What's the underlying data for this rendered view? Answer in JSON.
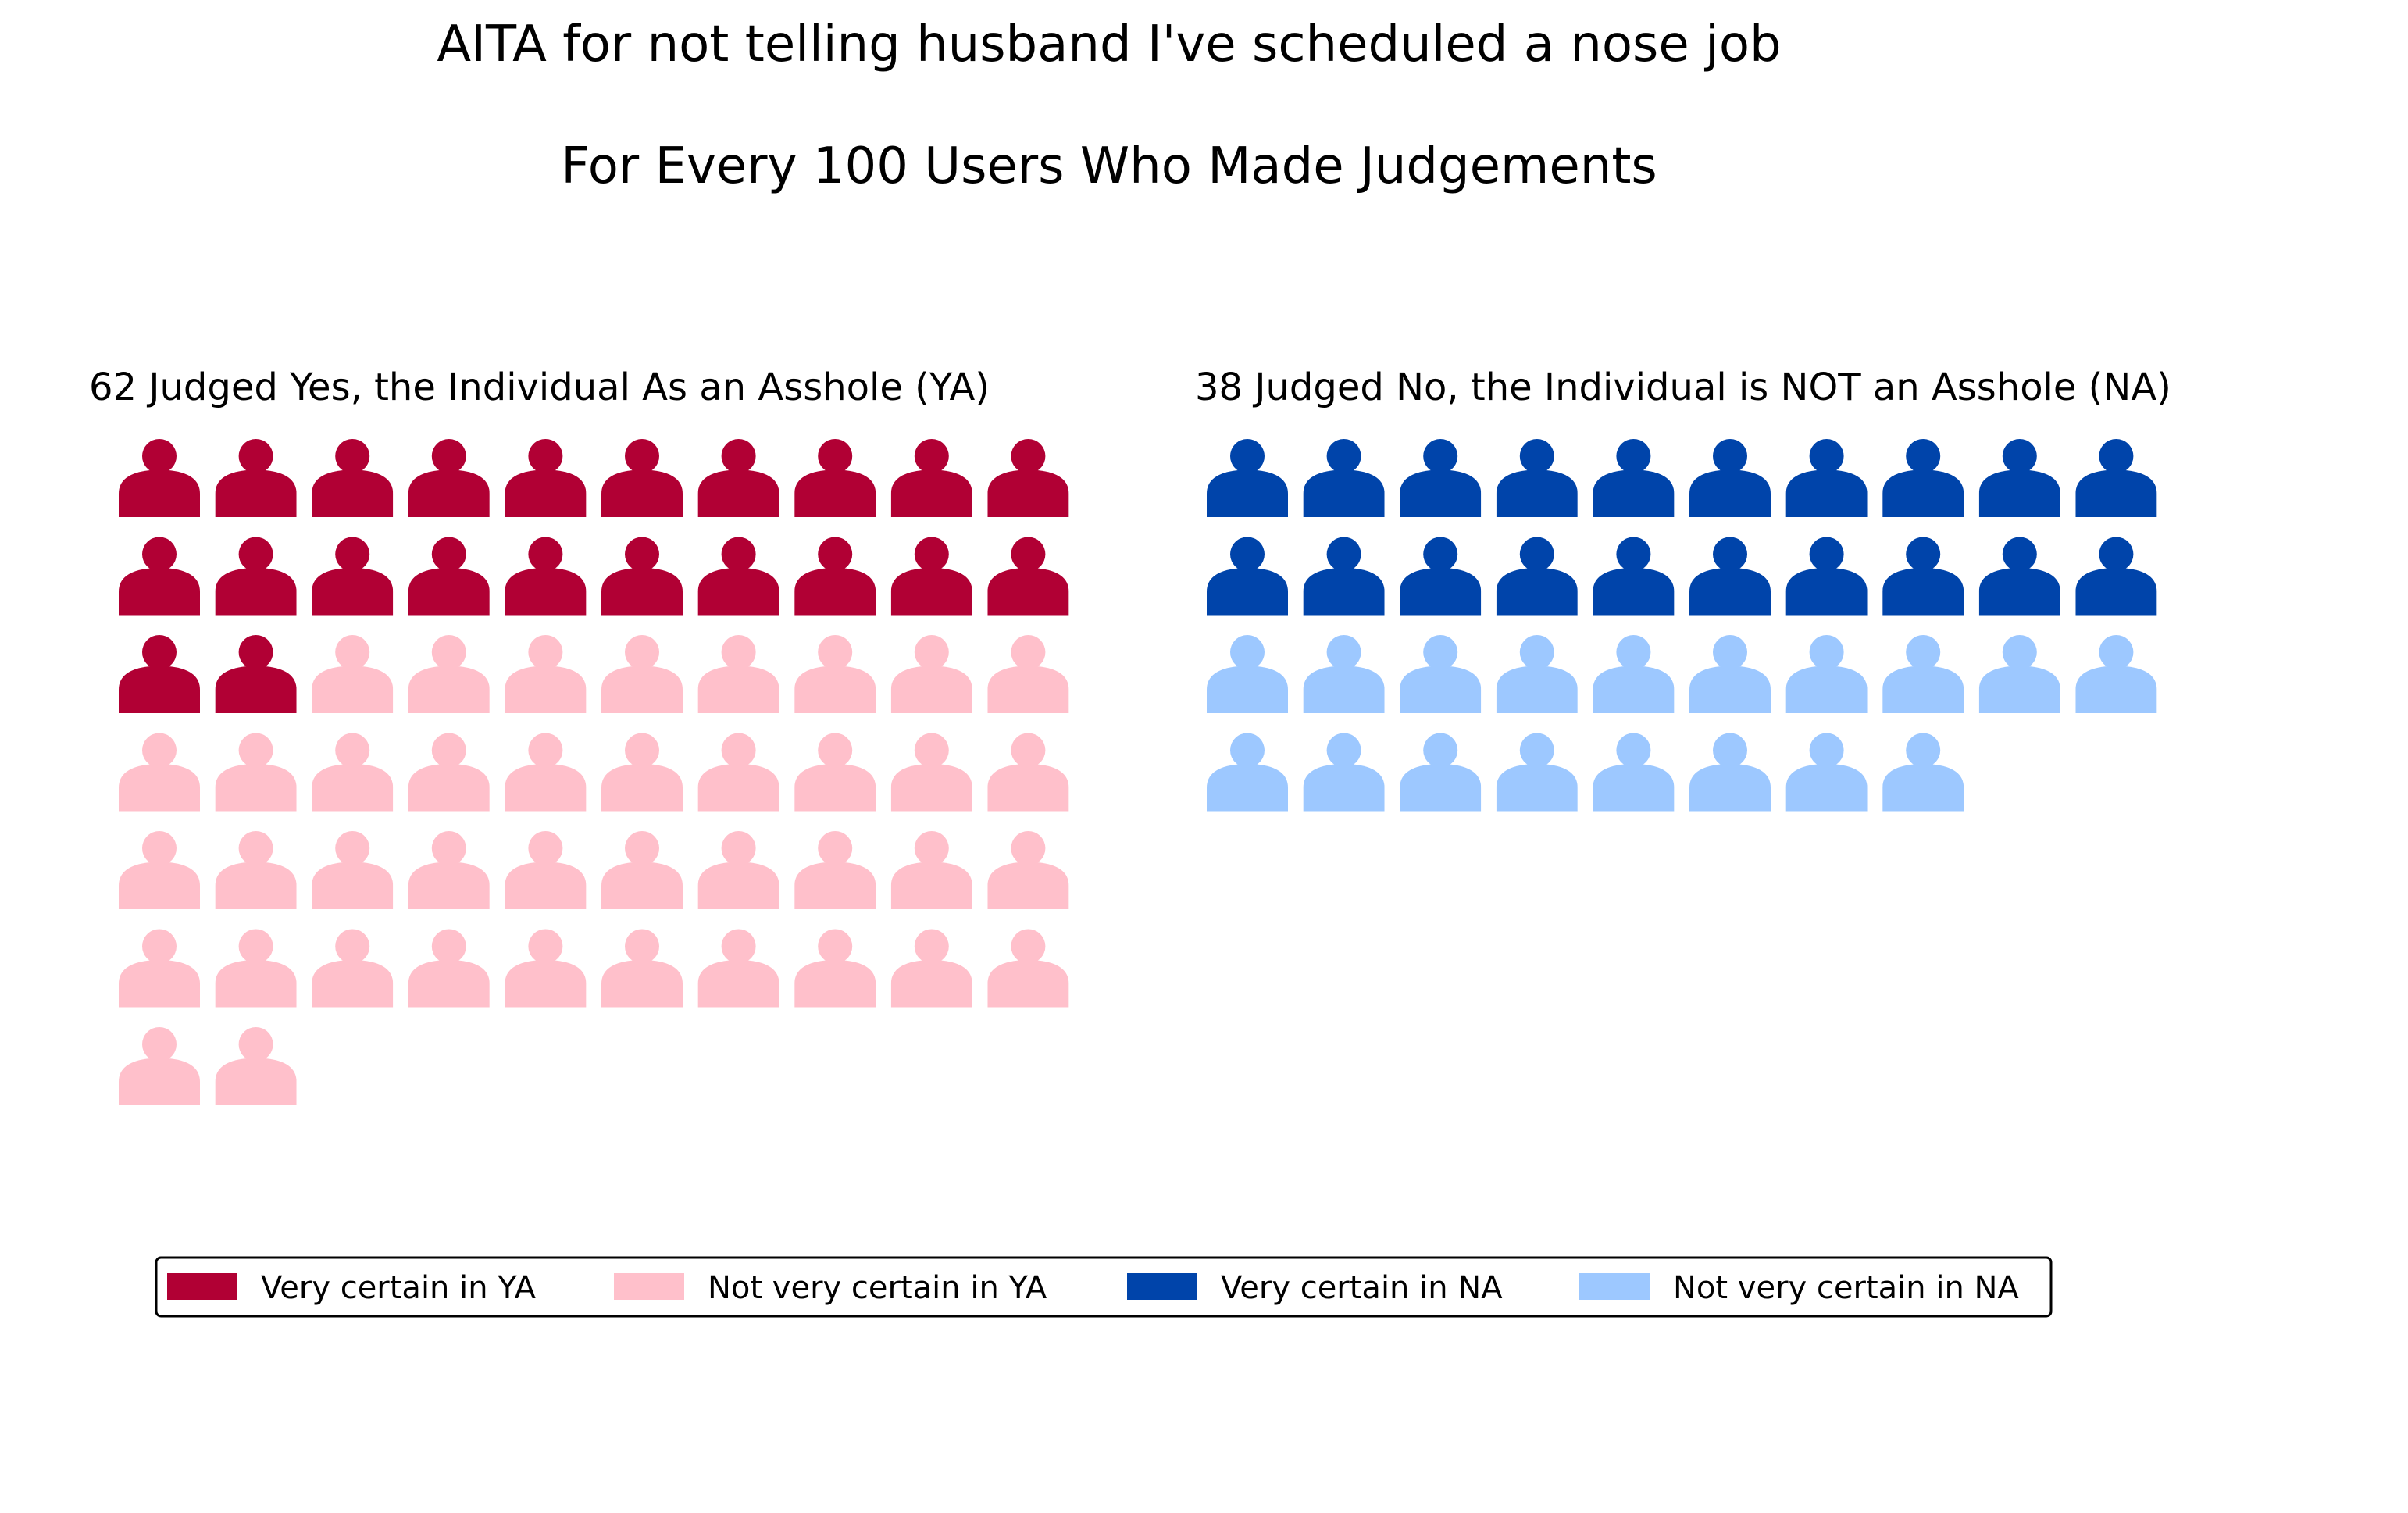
{
  "chart_data": {
    "type": "waffle",
    "title": "AITA for not telling husband I've scheduled a nose job",
    "subtitle": "For Every 100 Users Who Made Judgements",
    "icons_per_row": 10,
    "panels": [
      {
        "label": "62 Judged Yes, the Individual As an Asshole (YA)",
        "total": 62,
        "segments": [
          {
            "name": "Very certain in YA",
            "count": 22,
            "color": "#b10034"
          },
          {
            "name": "Not very certain in YA",
            "count": 40,
            "color": "#ffc0cb"
          }
        ]
      },
      {
        "label": "38 Judged No, the Individual is NOT an Asshole (NA)",
        "total": 38,
        "segments": [
          {
            "name": "Very certain in NA",
            "count": 20,
            "color": "#0044aa"
          },
          {
            "name": "Not very certain in NA",
            "count": 18,
            "color": "#9dc8ff"
          }
        ]
      }
    ],
    "legend": {
      "placement": "bottom",
      "entries": [
        {
          "label": "Very certain in YA",
          "color": "#b10034"
        },
        {
          "label": "Not very certain in YA",
          "color": "#ffc0cb"
        },
        {
          "label": "Very certain in NA",
          "color": "#0044aa"
        },
        {
          "label": "Not very certain in NA",
          "color": "#9dc8ff"
        }
      ]
    }
  }
}
